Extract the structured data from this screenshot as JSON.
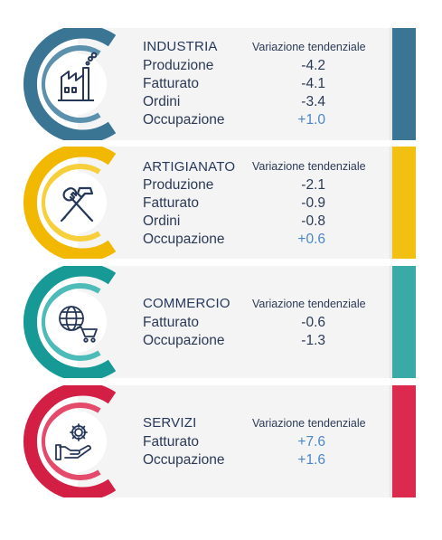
{
  "variation_label": "Variazione tendenziale",
  "sectors": [
    {
      "title": "INDUSTRIA",
      "icon": "factory-icon",
      "accent": "#3a7594",
      "rows": [
        {
          "label": "Produzione",
          "value": "-4.2",
          "sign": "neg"
        },
        {
          "label": "Fatturato",
          "value": "-4.1",
          "sign": "neg"
        },
        {
          "label": "Ordini",
          "value": "-3.4",
          "sign": "neg"
        },
        {
          "label": "Occupazione",
          "value": "+1.0",
          "sign": "pos"
        }
      ]
    },
    {
      "title": "ARTIGIANATO",
      "icon": "tools-icon",
      "accent": "#f2c010",
      "rows": [
        {
          "label": "Produzione",
          "value": "-2.1",
          "sign": "neg"
        },
        {
          "label": "Fatturato",
          "value": "-0.9",
          "sign": "neg"
        },
        {
          "label": "Ordini",
          "value": "-0.8",
          "sign": "neg"
        },
        {
          "label": "Occupazione",
          "value": "+0.6",
          "sign": "pos"
        }
      ]
    },
    {
      "title": "COMMERCIO",
      "icon": "globe-cart-icon",
      "accent": "#3aaaa6",
      "rows": [
        {
          "label": "Fatturato",
          "value": "-0.6",
          "sign": "neg"
        },
        {
          "label": "Occupazione",
          "value": "-1.3",
          "sign": "neg"
        }
      ]
    },
    {
      "title": "SERVIZI",
      "icon": "gear-hand-icon",
      "accent": "#dc2a4e",
      "rows": [
        {
          "label": "Fatturato",
          "value": "+7.6",
          "sign": "pos"
        },
        {
          "label": "Occupazione",
          "value": "+1.6",
          "sign": "pos"
        }
      ]
    }
  ]
}
